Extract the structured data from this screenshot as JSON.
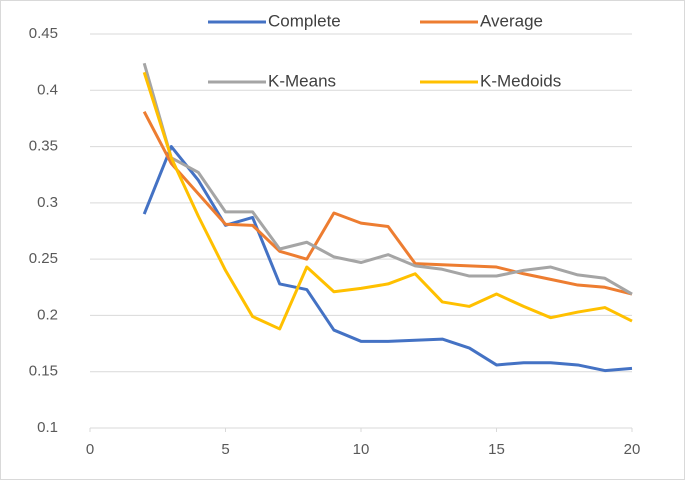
{
  "chart_data": {
    "type": "line",
    "x": [
      2,
      3,
      4,
      5,
      6,
      7,
      8,
      9,
      10,
      11,
      12,
      13,
      14,
      15,
      16,
      17,
      18,
      19,
      20
    ],
    "series": [
      {
        "name": "Complete",
        "color": "#4472c4",
        "values": [
          0.29,
          0.35,
          0.32,
          0.28,
          0.287,
          0.228,
          0.223,
          0.187,
          0.177,
          0.177,
          0.178,
          0.179,
          0.171,
          0.156,
          0.158,
          0.158,
          0.156,
          0.151,
          0.153
        ]
      },
      {
        "name": "Average",
        "color": "#ed7d31",
        "values": [
          0.381,
          0.335,
          0.308,
          0.281,
          0.28,
          0.257,
          0.25,
          0.291,
          0.282,
          0.279,
          0.246,
          0.245,
          0.244,
          0.243,
          0.237,
          0.232,
          0.227,
          0.225,
          0.219
        ]
      },
      {
        "name": "K-Means",
        "color": "#a5a5a5",
        "values": [
          0.424,
          0.34,
          0.327,
          0.292,
          0.292,
          0.259,
          0.265,
          0.252,
          0.247,
          0.254,
          0.244,
          0.241,
          0.235,
          0.235,
          0.24,
          0.243,
          0.236,
          0.233,
          0.219
        ]
      },
      {
        "name": "K-Medoids",
        "color": "#ffc000",
        "values": [
          0.416,
          0.34,
          0.288,
          0.24,
          0.199,
          0.188,
          0.243,
          0.221,
          0.224,
          0.228,
          0.237,
          0.212,
          0.208,
          0.219,
          0.208,
          0.198,
          0.203,
          0.207,
          0.195
        ]
      }
    ],
    "xlim": [
      0,
      20
    ],
    "xticks": [
      0,
      5,
      10,
      15,
      20
    ],
    "ylim": [
      0.1,
      0.45
    ],
    "yticks": [
      0.1,
      0.15,
      0.2,
      0.25,
      0.3,
      0.35,
      0.4,
      0.45
    ],
    "grid": true,
    "legend": "top"
  }
}
